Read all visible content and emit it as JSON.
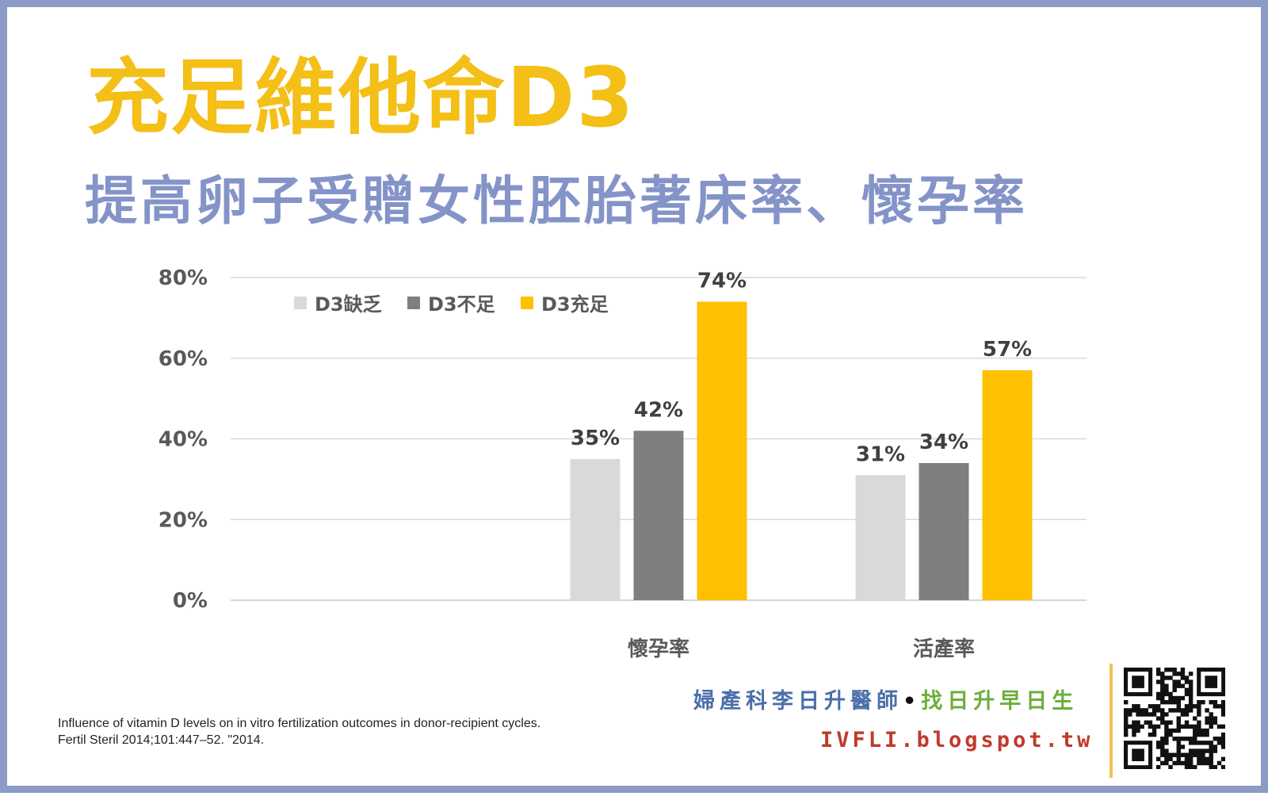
{
  "title": "充足維他命D3",
  "subtitle": "提高卵子受贈女性胚胎著床率、懷孕率",
  "colors": {
    "frame": "#8c9ac6",
    "title": "#f4bf17",
    "subtitle": "#8494c8",
    "brand_blue": "#4a6fa8",
    "brand_green": "#6cae3a",
    "brand_red": "#c0392b",
    "brand_rule": "#f2c14e"
  },
  "chart_data": {
    "type": "bar",
    "categories": [
      "",
      "懷孕率",
      "活產率"
    ],
    "series": [
      {
        "name": "D3缺乏",
        "color": "#d9d9d9",
        "values": [
          null,
          35,
          31
        ]
      },
      {
        "name": "D3不足",
        "color": "#7f7f7f",
        "values": [
          null,
          42,
          34
        ]
      },
      {
        "name": "D3充足",
        "color": "#ffc000",
        "values": [
          null,
          74,
          57
        ]
      }
    ],
    "data_labels": [
      [
        null,
        "35%",
        "31%"
      ],
      [
        null,
        "42%",
        "34%"
      ],
      [
        null,
        "74%",
        "57%"
      ]
    ],
    "ylim": [
      0,
      80
    ],
    "yticks": [
      0,
      20,
      40,
      60,
      80
    ],
    "ytick_labels": [
      "0%",
      "20%",
      "40%",
      "60%",
      "80%"
    ],
    "grid": true,
    "legend_position": "top-left"
  },
  "citation": {
    "line1": "Influence of vitamin D levels on in vitro fertilization outcomes in donor-recipient cycles.",
    "line2": "Fertil Steril 2014;101:447–52. \"2014."
  },
  "brand": {
    "doctor": "婦產科李日升醫師",
    "separator": "•",
    "slogan": "找日升早日生",
    "site": "IVFLI.blogspot.tw"
  },
  "qr_code_icon": "qr-code-icon"
}
